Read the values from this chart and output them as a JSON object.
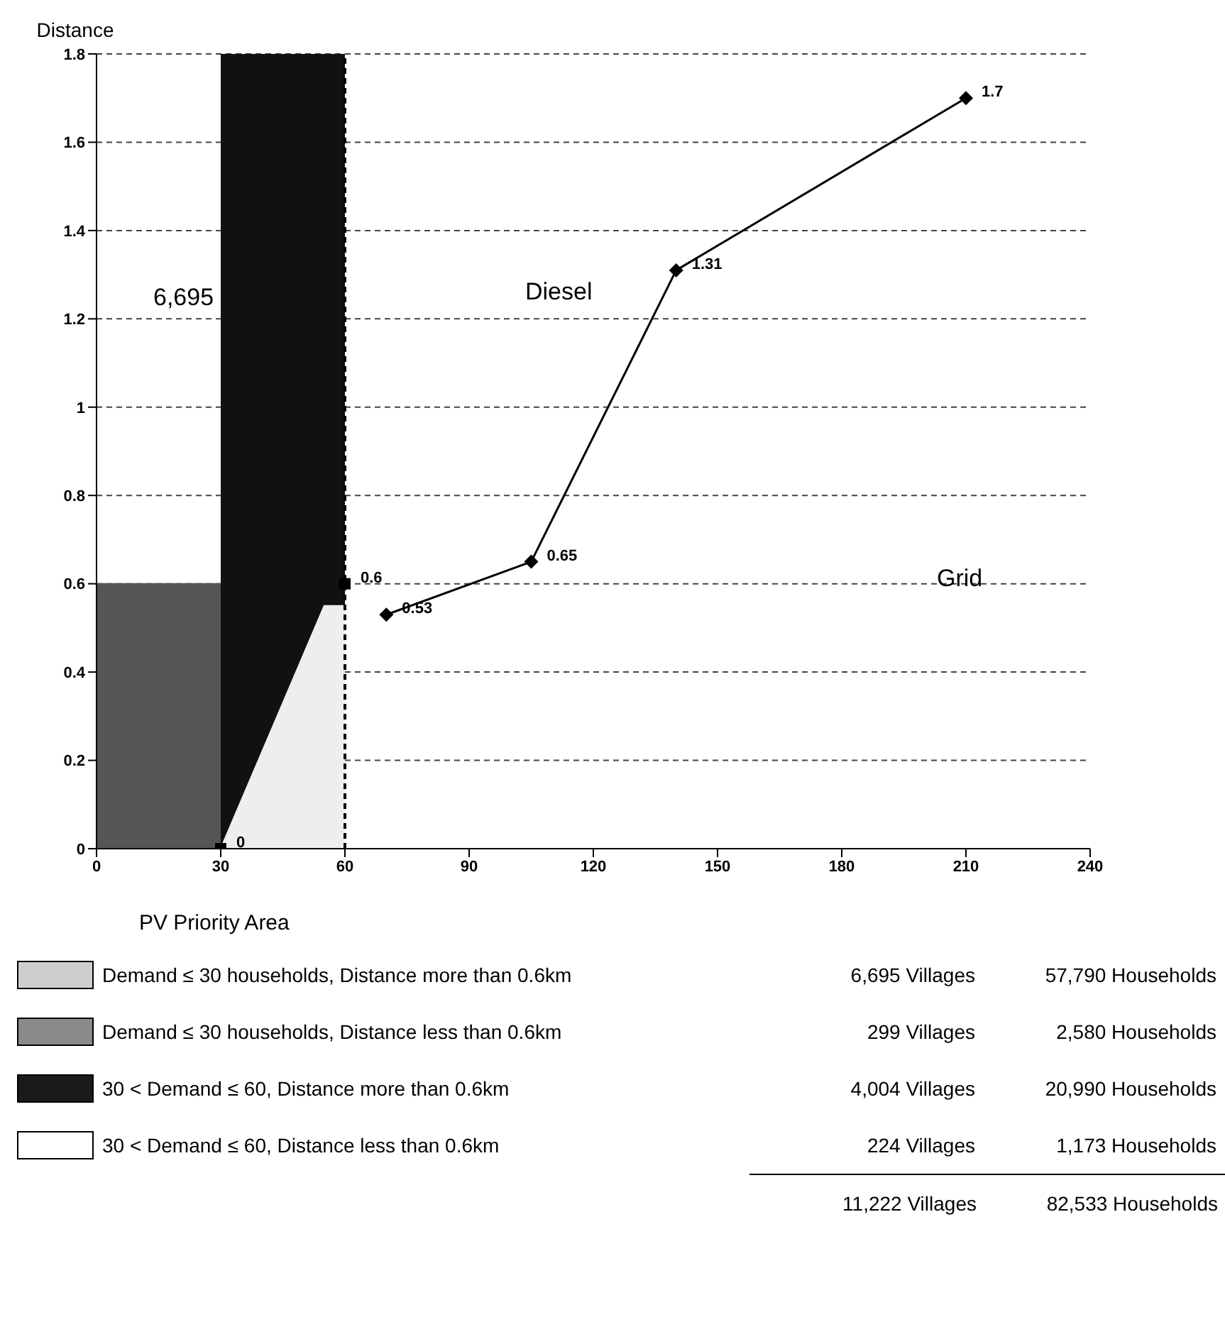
{
  "chart_data": {
    "type": "line",
    "ylabel": "Distance",
    "xlim": [
      0,
      240
    ],
    "xticks": [
      0,
      30,
      60,
      90,
      120,
      150,
      180,
      210,
      240
    ],
    "ylim": [
      0,
      1.8
    ],
    "yticks": [
      0,
      0.2,
      0.4,
      0.6,
      0.8,
      1,
      1.2,
      1.4,
      1.6,
      1.8
    ],
    "grid": "y",
    "legend": false,
    "series": [
      {
        "type": "area",
        "color": "#555555",
        "x": [
          0,
          30
        ],
        "values": [
          0.6,
          0.6
        ]
      },
      {
        "type": "area",
        "color": "#111111",
        "x": [
          30,
          60
        ],
        "values": [
          1.8,
          1.8
        ]
      },
      {
        "type": "area",
        "color": "#eeeeee",
        "x": [
          30,
          55,
          60
        ],
        "values": [
          0,
          0.55,
          0.55
        ]
      },
      {
        "type": "scatter",
        "color": "#000000",
        "marker": "square",
        "x": [
          30,
          60
        ],
        "values": [
          0,
          0.6
        ],
        "value_labels": [
          "0",
          "0.6"
        ]
      },
      {
        "color": "#000000",
        "marker": "diamond",
        "x": [
          70,
          105,
          140,
          210
        ],
        "values": [
          0.53,
          0.65,
          1.31,
          1.7
        ],
        "value_labels": [
          "0.53",
          "0.65",
          "1.31",
          "1.7"
        ]
      }
    ],
    "ref_lines": [
      {
        "axis": "x",
        "value": 60,
        "line_style": "dashed",
        "color": "#000000"
      }
    ],
    "annotations": [
      "6,695",
      "Diesel",
      "Grid",
      "PV Priority Area",
      "Demand ≤ 30 households, Distance more than 0.6km",
      "6,695 Villages",
      "57,790 Households",
      "Demand ≤ 30 households, Distance less than 0.6km",
      "299 Villages",
      "2,580 Households",
      "30 < Demand ≤ 60, Distance more than 0.6km",
      "4,004 Villages",
      "20,990 Households",
      "30 < Demand ≤ 60, Distance less than 0.6km",
      "224 Villages",
      "1,173 Households",
      "11,222 Villages",
      "82,533 Households"
    ]
  }
}
